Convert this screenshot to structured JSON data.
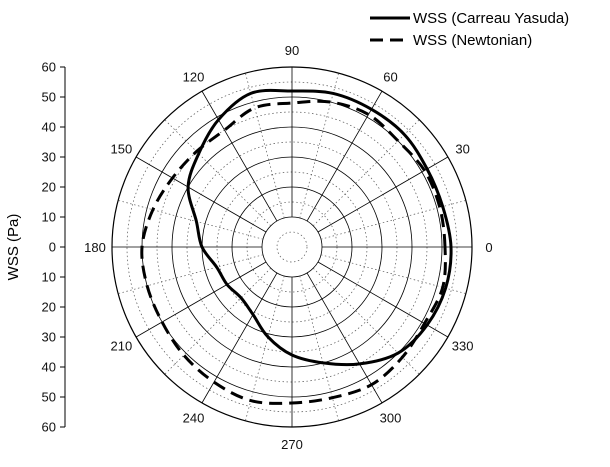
{
  "chart_data": {
    "type": "polar-line",
    "ylabel": "WSS (Pa)",
    "radial_range": [
      0,
      60
    ],
    "radial_ticks": [
      10,
      20,
      30,
      40,
      50,
      60
    ],
    "angle_labels": [
      "0",
      "30",
      "60",
      "90",
      "120",
      "150",
      "180",
      "210",
      "240",
      "270",
      "300",
      "330"
    ],
    "grid": true,
    "legend_position": "top-right",
    "series": [
      {
        "name": "WSS (Carreau Yasuda)",
        "style": "solid",
        "color": "#000000",
        "points": [
          {
            "angle": 0,
            "r": 53
          },
          {
            "angle": 15,
            "r": 52
          },
          {
            "angle": 30,
            "r": 52
          },
          {
            "angle": 45,
            "r": 53
          },
          {
            "angle": 60,
            "r": 53
          },
          {
            "angle": 75,
            "r": 53
          },
          {
            "angle": 90,
            "r": 52
          },
          {
            "angle": 105,
            "r": 53
          },
          {
            "angle": 120,
            "r": 49
          },
          {
            "angle": 135,
            "r": 44
          },
          {
            "angle": 150,
            "r": 40
          },
          {
            "angle": 165,
            "r": 33
          },
          {
            "angle": 180,
            "r": 30
          },
          {
            "angle": 195,
            "r": 26
          },
          {
            "angle": 210,
            "r": 25
          },
          {
            "angle": 225,
            "r": 24
          },
          {
            "angle": 240,
            "r": 26
          },
          {
            "angle": 255,
            "r": 31
          },
          {
            "angle": 270,
            "r": 36
          },
          {
            "angle": 285,
            "r": 40
          },
          {
            "angle": 300,
            "r": 45
          },
          {
            "angle": 315,
            "r": 50
          },
          {
            "angle": 330,
            "r": 52
          },
          {
            "angle": 345,
            "r": 53
          }
        ]
      },
      {
        "name": "WSS (Newtonian)",
        "style": "dashed",
        "color": "#000000",
        "points": [
          {
            "angle": 0,
            "r": 51
          },
          {
            "angle": 15,
            "r": 51
          },
          {
            "angle": 30,
            "r": 51
          },
          {
            "angle": 45,
            "r": 50
          },
          {
            "angle": 60,
            "r": 51
          },
          {
            "angle": 75,
            "r": 50
          },
          {
            "angle": 90,
            "r": 48
          },
          {
            "angle": 105,
            "r": 48
          },
          {
            "angle": 120,
            "r": 45
          },
          {
            "angle": 135,
            "r": 45
          },
          {
            "angle": 150,
            "r": 46
          },
          {
            "angle": 165,
            "r": 48
          },
          {
            "angle": 180,
            "r": 50
          },
          {
            "angle": 195,
            "r": 50
          },
          {
            "angle": 210,
            "r": 50
          },
          {
            "angle": 225,
            "r": 51
          },
          {
            "angle": 240,
            "r": 52
          },
          {
            "angle": 255,
            "r": 53
          },
          {
            "angle": 270,
            "r": 52
          },
          {
            "angle": 285,
            "r": 52
          },
          {
            "angle": 300,
            "r": 53
          },
          {
            "angle": 315,
            "r": 52
          },
          {
            "angle": 330,
            "r": 51
          },
          {
            "angle": 345,
            "r": 52
          }
        ]
      }
    ]
  }
}
